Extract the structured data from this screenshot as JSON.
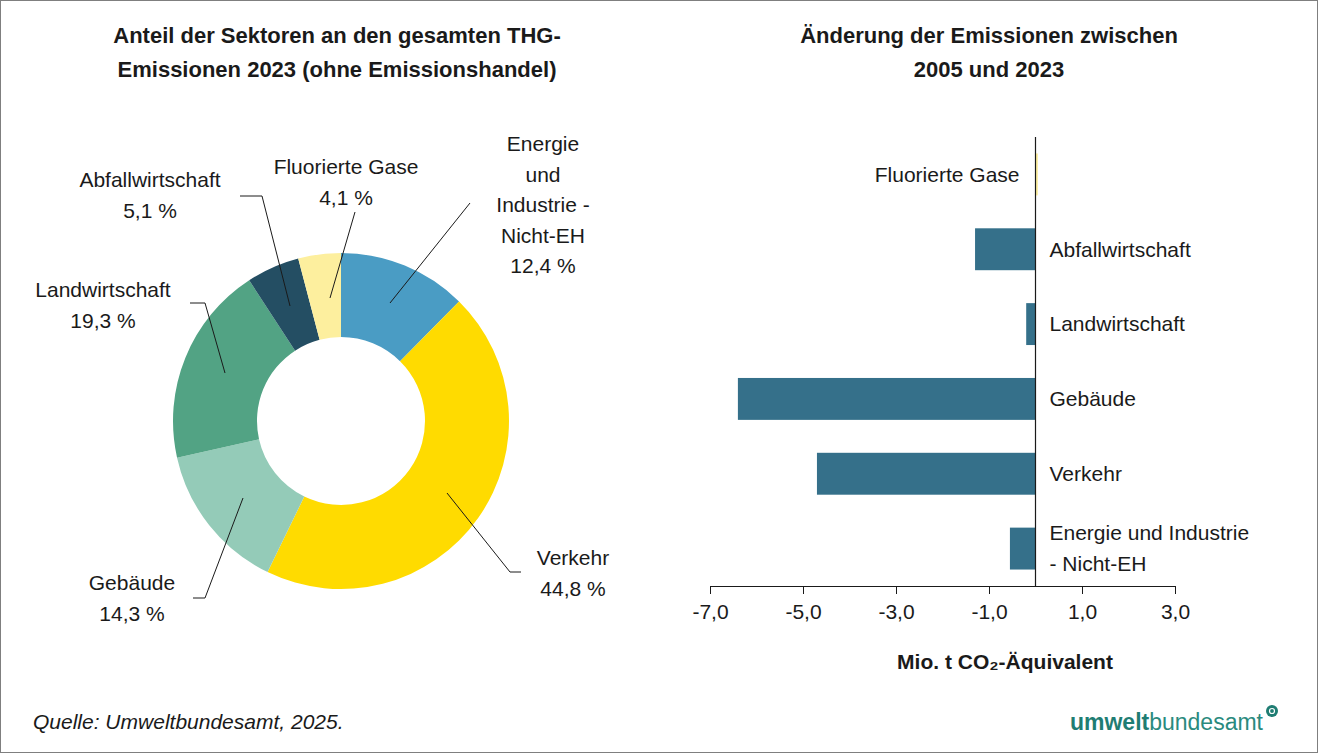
{
  "chart_data": [
    {
      "type": "pie",
      "title": "Anteil der Sektoren an den gesamten THG-\nEmissionen 2023 (ohne Emissionshandel)",
      "categories": [
        "Energie\nund\nIndustrie -\nNicht-EH",
        "Verkehr",
        "Gebäude",
        "Landwirtschaft",
        "Abfallwirtschaft",
        "Fluorierte Gase"
      ],
      "values": [
        12.4,
        44.8,
        14.3,
        19.3,
        5.1,
        4.1
      ],
      "value_labels": [
        "12,4 %",
        "44,8 %",
        "14,3 %",
        "19,3 %",
        "5,1 %",
        "4,1 %"
      ],
      "colors": [
        "#4a9cc4",
        "#ffdb00",
        "#94cbb8",
        "#52a384",
        "#244e63",
        "#fdef9e"
      ],
      "data_labels": true
    },
    {
      "type": "bar",
      "orientation": "horizontal",
      "title": "Änderung der Emissionen zwischen\n2005 und 2023",
      "categories": [
        "Fluorierte Gase",
        "Abfallwirtschaft",
        "Landwirtschaft",
        "Gebäude",
        "Verkehr",
        "Energie und Industrie\n- Nicht-EH"
      ],
      "values": [
        0.05,
        -1.3,
        -0.2,
        -6.4,
        -4.7,
        -0.55
      ],
      "colors": [
        "#fdef9e",
        "#35708a",
        "#35708a",
        "#35708a",
        "#35708a",
        "#35708a"
      ],
      "xlim": [
        -7,
        3
      ],
      "xticks": [
        {
          "value": -7,
          "label": "-7,0"
        },
        {
          "value": -5,
          "label": "-5,0"
        },
        {
          "value": -3,
          "label": "-3,0"
        },
        {
          "value": -1,
          "label": "-1,0"
        },
        {
          "value": 1,
          "label": "1,0"
        },
        {
          "value": 3,
          "label": "3,0"
        }
      ],
      "xlabel": "Mio. t CO₂-Äquivalent"
    }
  ],
  "source": "Quelle: Umweltbundesamt, 2025.",
  "logo": [
    "umwelt",
    "bundesamt"
  ]
}
